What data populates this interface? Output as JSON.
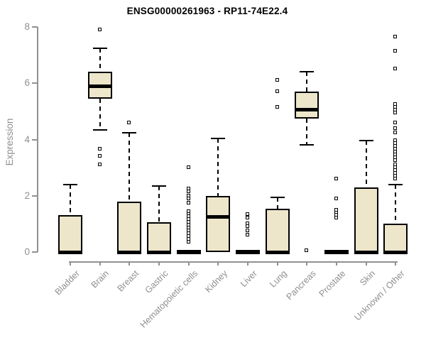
{
  "chart_data": {
    "type": "boxplot",
    "title": "ENSG00000261963 - RP11-74E22.4",
    "ylabel": "Expression",
    "ylim": [
      0,
      8
    ],
    "yticks": [
      0,
      2,
      4,
      6,
      8
    ],
    "grid": false,
    "legend": null,
    "categories": [
      "Bladder",
      "Brain",
      "Breast",
      "Gastric",
      "Hematopoietic cells",
      "Kidney",
      "Liver",
      "Lung",
      "Pancreas",
      "Prostate",
      "Skin",
      "Unknown / Other"
    ],
    "series": [
      {
        "name": "Bladder",
        "whisker_low": 0,
        "q1": 0,
        "median": 0,
        "q3": 1.3,
        "whisker_high": 2.4,
        "outliers": []
      },
      {
        "name": "Brain",
        "whisker_low": 4.35,
        "q1": 5.45,
        "median": 5.9,
        "q3": 6.4,
        "whisker_high": 7.25,
        "outliers": [
          7.9,
          3.65,
          3.4,
          3.1
        ]
      },
      {
        "name": "Breast",
        "whisker_low": 0,
        "q1": 0,
        "median": 0,
        "q3": 1.8,
        "whisker_high": 4.25,
        "outliers": [
          4.6
        ]
      },
      {
        "name": "Gastric",
        "whisker_low": 0,
        "q1": 0,
        "median": 0,
        "q3": 1.05,
        "whisker_high": 2.35,
        "outliers": []
      },
      {
        "name": "Hematopoietic cells",
        "whisker_low": 0,
        "q1": 0,
        "median": 0,
        "q3": 0,
        "whisker_high": 0,
        "outliers": [
          3.0,
          2.25,
          2.15,
          2.0,
          1.9,
          1.75,
          1.45,
          1.35,
          1.25,
          1.15,
          1.05,
          0.95,
          0.85,
          0.75,
          0.65,
          0.55,
          0.45,
          0.35
        ]
      },
      {
        "name": "Kidney",
        "whisker_low": 0,
        "q1": 0,
        "median": 1.25,
        "q3": 2.0,
        "whisker_high": 4.05,
        "outliers": []
      },
      {
        "name": "Liver",
        "whisker_low": 0,
        "q1": 0,
        "median": 0,
        "q3": 0,
        "whisker_high": 0,
        "outliers": [
          1.35,
          1.2,
          1.0,
          0.9,
          0.75,
          0.6
        ]
      },
      {
        "name": "Lung",
        "whisker_low": 0,
        "q1": 0,
        "median": 0,
        "q3": 1.55,
        "whisker_high": 1.95,
        "outliers": [
          6.1,
          5.7,
          5.15
        ]
      },
      {
        "name": "Pancreas",
        "whisker_low": 3.8,
        "q1": 4.75,
        "median": 5.05,
        "q3": 5.7,
        "whisker_high": 6.4,
        "outliers": [
          0.05
        ]
      },
      {
        "name": "Prostate",
        "whisker_low": 0,
        "q1": 0,
        "median": 0,
        "q3": 0,
        "whisker_high": 0,
        "outliers": [
          2.6,
          1.9,
          1.5,
          1.4,
          1.3,
          1.2
        ]
      },
      {
        "name": "Skin",
        "whisker_low": 0,
        "q1": 0,
        "median": 0,
        "q3": 2.3,
        "whisker_high": 3.95,
        "outliers": []
      },
      {
        "name": "Unknown / Other",
        "whisker_low": 0,
        "q1": 0,
        "median": 0,
        "q3": 1.0,
        "whisker_high": 2.4,
        "outliers": [
          7.65,
          7.15,
          6.5,
          5.25,
          5.15,
          5.05,
          4.95,
          4.6,
          4.4,
          4.25,
          3.95,
          3.85,
          3.75,
          3.65,
          3.55,
          3.45,
          3.35,
          3.25,
          3.1,
          3.0,
          2.9,
          2.8,
          2.7,
          2.6
        ]
      }
    ],
    "colors": {
      "box_fill": "#ede6cb",
      "box_border": "#000000",
      "median": "#000000",
      "axis": "#919191",
      "tick_label": "#8f8f8f",
      "title": "#000000",
      "background": "#ffffff"
    }
  }
}
